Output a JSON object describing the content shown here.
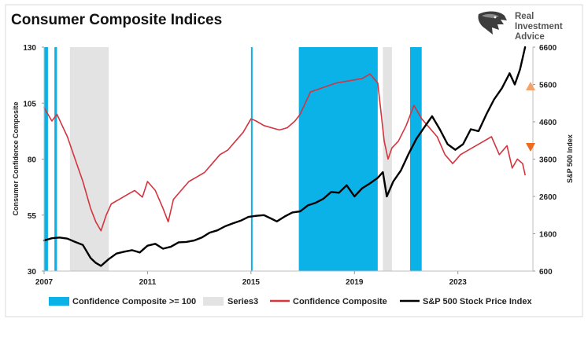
{
  "brand": {
    "logo_icon": "eagle-head-icon",
    "lines": [
      "Real",
      "Investment",
      "Advice"
    ]
  },
  "chart_data": {
    "type": "line",
    "title": "Consumer Composite Indices",
    "x_tick_labels": [
      "2007",
      "2011",
      "2015",
      "2019",
      "2023"
    ],
    "xlim": [
      2007,
      2025.9
    ],
    "left_axis": {
      "label": "Consumer Confidence Composite",
      "ylim": [
        30,
        130
      ],
      "ticks": [
        30,
        55,
        80,
        105,
        130
      ]
    },
    "right_axis": {
      "label": "S&P 500 Index",
      "ylim": [
        600,
        6600
      ],
      "ticks": [
        600,
        1600,
        2600,
        3600,
        4600,
        5600,
        6600
      ]
    },
    "grid": false,
    "legend_position": "bottom",
    "colors": {
      "composite": "#d3343f",
      "sp500": "#000000",
      "high_confidence": "#0bb2e8",
      "series3": "#e3e3e3",
      "arrow": "#f08a3c"
    },
    "series": [
      {
        "name": "Confidence Composite >= 100",
        "type": "area",
        "periods": [
          [
            2007.0,
            2007.15
          ],
          [
            2007.4,
            2007.5
          ],
          [
            2016.85,
            2019.9
          ],
          [
            2021.15,
            2021.6
          ],
          [
            2015.0,
            2015.05
          ]
        ]
      },
      {
        "name": "Series3",
        "type": "area",
        "periods": [
          [
            2008.0,
            2009.5
          ],
          [
            2020.1,
            2020.45
          ]
        ]
      },
      {
        "name": "Confidence Composite",
        "axis": "left",
        "x": [
          2007.0,
          2007.1,
          2007.3,
          2007.5,
          2007.7,
          2007.9,
          2008.2,
          2008.5,
          2008.8,
          2009.0,
          2009.2,
          2009.4,
          2009.6,
          2009.9,
          2010.2,
          2010.5,
          2010.8,
          2011.0,
          2011.3,
          2011.6,
          2011.8,
          2012.0,
          2012.3,
          2012.6,
          2012.9,
          2013.2,
          2013.5,
          2013.8,
          2014.1,
          2014.4,
          2014.7,
          2015.0,
          2015.2,
          2015.5,
          2015.8,
          2016.1,
          2016.4,
          2016.7,
          2016.9,
          2017.3,
          2017.8,
          2018.3,
          2018.8,
          2019.3,
          2019.6,
          2019.9,
          2020.15,
          2020.3,
          2020.45,
          2020.7,
          2021.0,
          2021.3,
          2021.6,
          2021.9,
          2022.2,
          2022.5,
          2022.8,
          2023.1,
          2023.4,
          2023.7,
          2024.0,
          2024.3,
          2024.6,
          2024.9,
          2025.1,
          2025.3,
          2025.5,
          2025.6
        ],
        "values": [
          103,
          101,
          97,
          100,
          95,
          90,
          80,
          70,
          58,
          52,
          48,
          55,
          60,
          62,
          64,
          66,
          63,
          70,
          66,
          58,
          52,
          62,
          66,
          70,
          72,
          74,
          78,
          82,
          84,
          88,
          92,
          98,
          97,
          95,
          94,
          93,
          94,
          97,
          100,
          110,
          112,
          114,
          115,
          116,
          118,
          114,
          88,
          80,
          85,
          88,
          95,
          104,
          98,
          94,
          90,
          82,
          78,
          82,
          84,
          86,
          88,
          90,
          82,
          86,
          76,
          80,
          78,
          73
        ]
      },
      {
        "name": "S&P 500 Stock Price Index",
        "axis": "right",
        "x": [
          2007.0,
          2007.3,
          2007.6,
          2007.9,
          2008.2,
          2008.5,
          2008.8,
          2009.0,
          2009.2,
          2009.5,
          2009.8,
          2010.1,
          2010.4,
          2010.7,
          2011.0,
          2011.3,
          2011.6,
          2011.9,
          2012.2,
          2012.5,
          2012.8,
          2013.1,
          2013.4,
          2013.7,
          2014.0,
          2014.3,
          2014.6,
          2014.9,
          2015.2,
          2015.5,
          2015.8,
          2016.0,
          2016.3,
          2016.6,
          2016.9,
          2017.2,
          2017.5,
          2017.8,
          2018.1,
          2018.4,
          2018.7,
          2019.0,
          2019.3,
          2019.6,
          2019.9,
          2020.1,
          2020.25,
          2020.5,
          2020.8,
          2021.1,
          2021.4,
          2021.7,
          2022.0,
          2022.3,
          2022.6,
          2022.9,
          2023.2,
          2023.5,
          2023.8,
          2024.1,
          2024.4,
          2024.7,
          2025.0,
          2025.2,
          2025.4,
          2025.6
        ],
        "values": [
          1420,
          1480,
          1500,
          1470,
          1380,
          1300,
          950,
          820,
          740,
          920,
          1070,
          1120,
          1160,
          1100,
          1280,
          1330,
          1200,
          1250,
          1370,
          1380,
          1420,
          1500,
          1630,
          1690,
          1800,
          1880,
          1950,
          2050,
          2080,
          2100,
          2000,
          1930,
          2060,
          2170,
          2200,
          2360,
          2430,
          2540,
          2720,
          2700,
          2900,
          2600,
          2820,
          2950,
          3100,
          3250,
          2600,
          3000,
          3300,
          3750,
          4150,
          4450,
          4750,
          4400,
          4000,
          3850,
          4000,
          4400,
          4350,
          4800,
          5200,
          5500,
          5900,
          5600,
          6000,
          6600
        ]
      }
    ]
  }
}
